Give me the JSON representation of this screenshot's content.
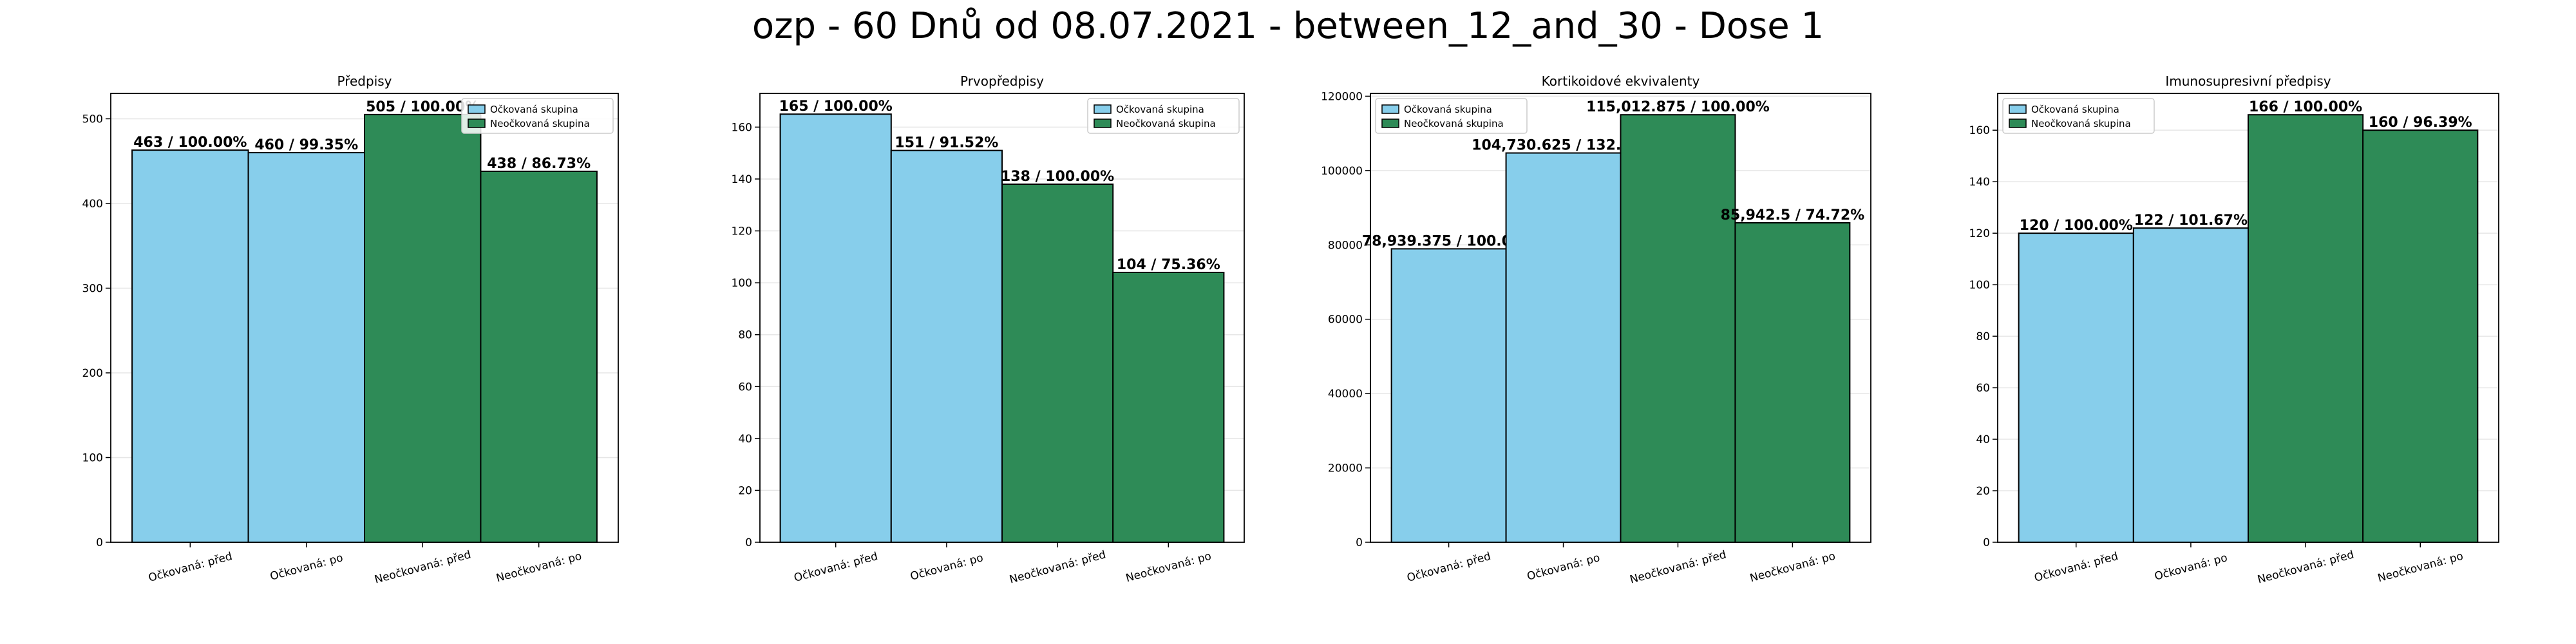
{
  "figure": {
    "title": "ozp - 60 Dnů od 08.07.2021 - between_12_and_30 - Dose 1"
  },
  "colors": {
    "vaccinated": "#87ceeb",
    "unvaccinated": "#2e8b57",
    "edge": "#000000",
    "grid": "#e6e6e6"
  },
  "chart_data": [
    {
      "type": "bar",
      "title": "Předpisy",
      "categories": [
        "Očkovaná: před",
        "Očkovaná: po",
        "Neočkovaná: před",
        "Neočkovaná: po"
      ],
      "values": [
        463,
        460,
        505,
        438
      ],
      "groups": [
        "vaccinated",
        "vaccinated",
        "unvaccinated",
        "unvaccinated"
      ],
      "labels": [
        "463 / 100.00%",
        "460 / 99.35%",
        "505 / 100.00%",
        "438 / 86.73%"
      ],
      "ylim": [
        0,
        530
      ],
      "yticks": [
        0,
        100,
        200,
        300,
        400,
        500
      ],
      "ytick_labels": [
        "0",
        "100",
        "200",
        "300",
        "400",
        "500"
      ],
      "legend": {
        "location": "upper right",
        "entries": [
          "Očkovaná skupina",
          "Neočkovaná skupina"
        ]
      },
      "grid": "y"
    },
    {
      "type": "bar",
      "title": "Prvopředpisy",
      "categories": [
        "Očkovaná: před",
        "Očkovaná: po",
        "Neočkovaná: před",
        "Neočkovaná: po"
      ],
      "values": [
        165,
        151,
        138,
        104
      ],
      "groups": [
        "vaccinated",
        "vaccinated",
        "unvaccinated",
        "unvaccinated"
      ],
      "labels": [
        "165 / 100.00%",
        "151 / 91.52%",
        "138 / 100.00%",
        "104 / 75.36%"
      ],
      "ylim": [
        0,
        173
      ],
      "yticks": [
        0,
        20,
        40,
        60,
        80,
        100,
        120,
        140,
        160
      ],
      "ytick_labels": [
        "0",
        "20",
        "40",
        "60",
        "80",
        "100",
        "120",
        "140",
        "160"
      ],
      "legend": {
        "location": "upper right",
        "entries": [
          "Očkovaná skupina",
          "Neočkovaná skupina"
        ]
      },
      "grid": "y"
    },
    {
      "type": "bar",
      "title": "Kortikoidové ekvivalenty",
      "categories": [
        "Očkovaná: před",
        "Očkovaná: po",
        "Neočkovaná: před",
        "Neočkovaná: po"
      ],
      "values": [
        78939.375,
        104730.625,
        115012.875,
        85942.5
      ],
      "groups": [
        "vaccinated",
        "vaccinated",
        "unvaccinated",
        "unvaccinated"
      ],
      "labels": [
        "78,939.375 / 100.00%",
        "104,730.625 / 132.67%",
        "115,012.875 / 100.00%",
        "85,942.5 / 74.72%"
      ],
      "ylim": [
        0,
        120764
      ],
      "yticks": [
        0,
        20000,
        40000,
        60000,
        80000,
        100000,
        120000
      ],
      "ytick_labels": [
        "0",
        "20000",
        "40000",
        "60000",
        "80000",
        "100000",
        "120000"
      ],
      "legend": {
        "location": "upper left",
        "entries": [
          "Očkovaná skupina",
          "Neočkovaná skupina"
        ]
      },
      "grid": "y"
    },
    {
      "type": "bar",
      "title": "Imunosupresivní předpisy",
      "categories": [
        "Očkovaná: před",
        "Očkovaná: po",
        "Neočkovaná: před",
        "Neočkovaná: po"
      ],
      "values": [
        120,
        122,
        166,
        160
      ],
      "groups": [
        "vaccinated",
        "vaccinated",
        "unvaccinated",
        "unvaccinated"
      ],
      "labels": [
        "120 / 100.00%",
        "122 / 101.67%",
        "166 / 100.00%",
        "160 / 96.39%"
      ],
      "ylim": [
        0,
        174.3
      ],
      "yticks": [
        0,
        20,
        40,
        60,
        80,
        100,
        120,
        140,
        160
      ],
      "ytick_labels": [
        "0",
        "20",
        "40",
        "60",
        "80",
        "100",
        "120",
        "140",
        "160"
      ],
      "legend": {
        "location": "upper left",
        "entries": [
          "Očkovaná skupina",
          "Neočkovaná skupina"
        ]
      },
      "grid": "y"
    }
  ]
}
